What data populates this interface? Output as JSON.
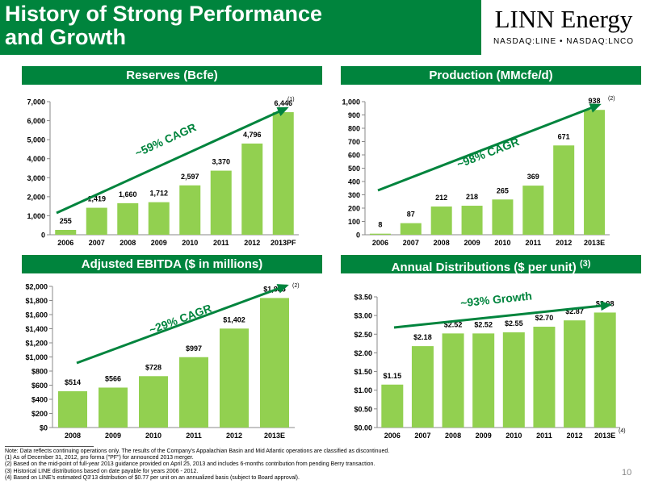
{
  "header": {
    "title_line1": "History of Strong Performance",
    "title_line2": "and Growth",
    "logo_name": "LINN Energy",
    "logo_ticker": "NASDAQ:LINE • NASDAQ:LNCO"
  },
  "colors": {
    "green": "#00843D",
    "bar": "#92D050"
  },
  "chart_data": [
    {
      "type": "bar",
      "title": "Reserves  (Bcfe)",
      "categories": [
        "2006",
        "2007",
        "2008",
        "2009",
        "2010",
        "2011",
        "2012",
        "2013PF"
      ],
      "values": [
        255,
        1419,
        1660,
        1712,
        2597,
        3370,
        4796,
        6446
      ],
      "value_labels": [
        "255",
        "1,419",
        "1,660",
        "1,712",
        "2,597",
        "3,370",
        "4,796",
        "6,446"
      ],
      "ylim": [
        0,
        7000
      ],
      "yticks": [
        0,
        1000,
        2000,
        3000,
        4000,
        5000,
        6000,
        7000
      ],
      "ytick_labels": [
        "0",
        "1,000",
        "2,000",
        "3,000",
        "4,000",
        "5,000",
        "6,000",
        "7,000"
      ],
      "annotation": "~59% CAGR",
      "footnote_mark": "(1)"
    },
    {
      "type": "bar",
      "title": "Production (MMcfe/d)",
      "categories": [
        "2006",
        "2007",
        "2008",
        "2009",
        "2010",
        "2011",
        "2012",
        "2013E"
      ],
      "values": [
        8,
        87,
        212,
        218,
        265,
        369,
        671,
        938
      ],
      "value_labels": [
        "8",
        "87",
        "212",
        "218",
        "265",
        "369",
        "671",
        "938"
      ],
      "ylim": [
        0,
        1000
      ],
      "yticks": [
        0,
        100,
        200,
        300,
        400,
        500,
        600,
        700,
        800,
        900,
        1000
      ],
      "ytick_labels": [
        "0",
        "100",
        "200",
        "300",
        "400",
        "500",
        "600",
        "700",
        "800",
        "900",
        "1,000"
      ],
      "annotation": "~98% CAGR",
      "footnote_mark": "(2)"
    },
    {
      "type": "bar",
      "title": "Adjusted EBITDA ($ in millions)",
      "categories": [
        "2008",
        "2009",
        "2010",
        "2011",
        "2012",
        "2013E"
      ],
      "values": [
        514,
        566,
        728,
        997,
        1402,
        1835
      ],
      "value_labels": [
        "$514",
        "$566",
        "$728",
        "$997",
        "$1,402",
        "$1,835"
      ],
      "ylim": [
        0,
        2000
      ],
      "yticks": [
        0,
        200,
        400,
        600,
        800,
        1000,
        1200,
        1400,
        1600,
        1800,
        2000
      ],
      "ytick_labels": [
        "$0",
        "$200",
        "$400",
        "$600",
        "$800",
        "$1,000",
        "$1,200",
        "$1,400",
        "$1,600",
        "$1,800",
        "$2,000"
      ],
      "annotation": "~29% CAGR",
      "footnote_mark": "(2)"
    },
    {
      "type": "bar",
      "title": "Annual Distributions ($ per unit) ",
      "title_mark": "(3)",
      "categories": [
        "2006",
        "2007",
        "2008",
        "2009",
        "2010",
        "2011",
        "2012",
        "2013E"
      ],
      "values": [
        1.15,
        2.18,
        2.52,
        2.52,
        2.55,
        2.7,
        2.87,
        3.08
      ],
      "value_labels": [
        "$1.15",
        "$2.18",
        "$2.52",
        "$2.52",
        "$2.55",
        "$2.70",
        "$2.87",
        "$3.08"
      ],
      "ylim": [
        0,
        3.5
      ],
      "yticks": [
        0,
        0.5,
        1,
        1.5,
        2,
        2.5,
        3,
        3.5
      ],
      "ytick_labels": [
        "$0.00",
        "$0.50",
        "$1.00",
        "$1.50",
        "$2.00",
        "$2.50",
        "$3.00",
        "$3.50"
      ],
      "annotation": "~93% Growth",
      "footnote_mark": "(4)"
    }
  ],
  "notes": [
    "Note: Data reflects continuing operations only. The results of the Company's Appalachian Basin and Mid Atlantic operations are classified as discontinued.",
    "(1)      As of December 31, 2012, pro forma (\"PF\") for announced 2013 merger.",
    "(2)      Based on the mid-point of full-year 2013 guidance provided on April 25, 2013 and includes 6-months contribution from pending Berry transaction.",
    "(3)      Historical LINE distributions based on date payable for years 2006 - 2012.",
    "(4)      Based on LINE's estimated Q3'13 distribution of $0.77 per unit on an annualized basis (subject to Board approval)."
  ],
  "page_number": "10"
}
